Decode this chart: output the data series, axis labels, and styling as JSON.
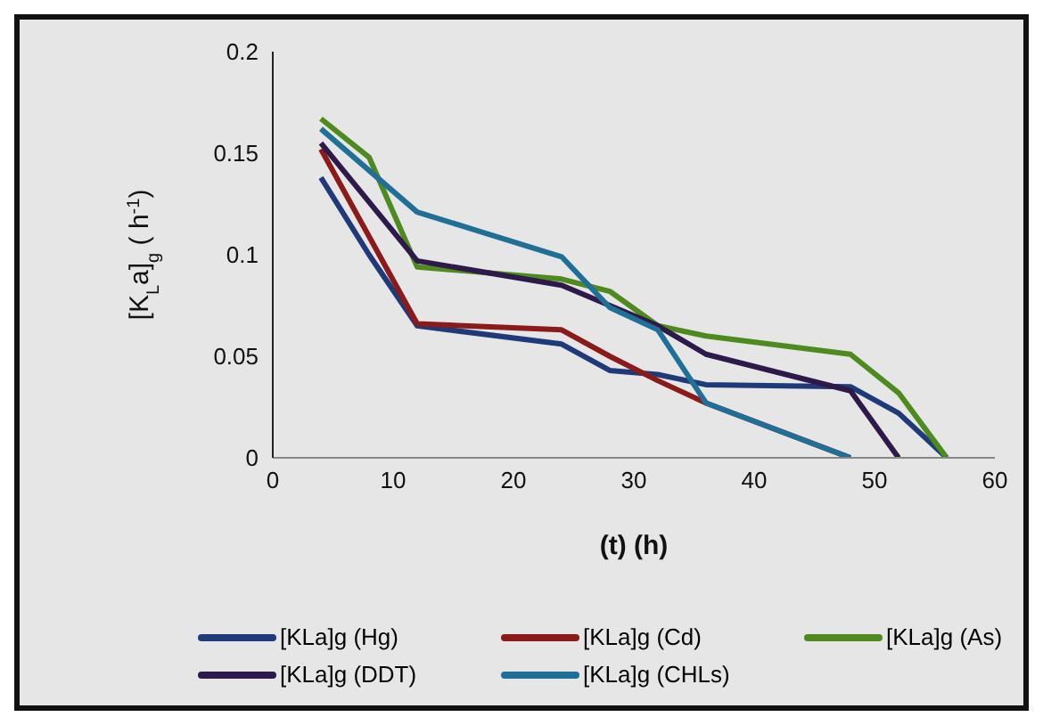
{
  "chart_data": {
    "type": "line",
    "xlabel": "(t) (h)",
    "ylabel": "[K$_{L}$a]$_{g}$ ( h$^{-1}$)",
    "xlim": [
      0,
      60
    ],
    "xticks": [
      0,
      10,
      20,
      30,
      40,
      50,
      60
    ],
    "ylim": [
      0,
      0.2
    ],
    "yticks": [
      0,
      0.05,
      0.1,
      0.15,
      0.2
    ],
    "grid": false,
    "legend": "bottom",
    "marker": "none",
    "line_style": "solid",
    "series": [
      {
        "name": "[KLa]g (Hg)",
        "color": "#1f3a78",
        "x": [
          4,
          8,
          12,
          24,
          28,
          32,
          36,
          48,
          52,
          56
        ],
        "values": [
          0.138,
          0.1,
          0.065,
          0.056,
          0.043,
          0.041,
          0.036,
          0.035,
          0.022,
          0
        ]
      },
      {
        "name": "[KLa]g (Cd)",
        "color": "#8b1a1a",
        "x": [
          4,
          12,
          24,
          28,
          32,
          36,
          48
        ],
        "values": [
          0.152,
          0.066,
          0.063,
          0.05,
          0.038,
          0.027,
          0
        ]
      },
      {
        "name": "[KLa]g (As)",
        "color": "#4e8a1e",
        "x": [
          4,
          8,
          12,
          24,
          28,
          32,
          36,
          48,
          52,
          56
        ],
        "values": [
          0.167,
          0.148,
          0.094,
          0.088,
          0.082,
          0.065,
          0.06,
          0.051,
          0.032,
          0
        ]
      },
      {
        "name": "[KLa]g (DDT)",
        "color": "#2e1a4a",
        "x": [
          4,
          12,
          24,
          28,
          32,
          36,
          48,
          52
        ],
        "values": [
          0.155,
          0.097,
          0.085,
          0.075,
          0.065,
          0.051,
          0.033,
          0
        ]
      },
      {
        "name": "[KLa]g (CHLs)",
        "color": "#1f6f96",
        "x": [
          4,
          12,
          24,
          28,
          32,
          36,
          48
        ],
        "values": [
          0.162,
          0.121,
          0.099,
          0.074,
          0.063,
          0.027,
          0
        ]
      }
    ]
  }
}
